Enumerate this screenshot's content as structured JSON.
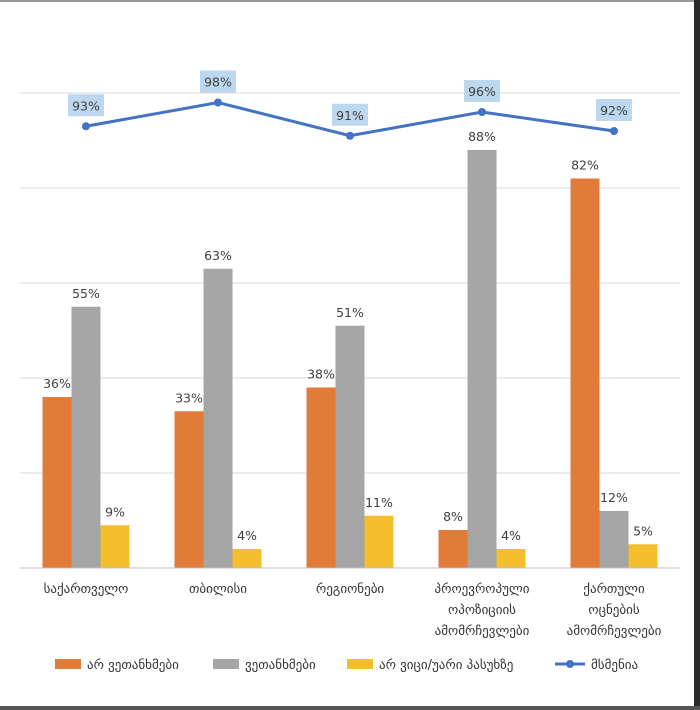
{
  "chart_data": {
    "type": "bar",
    "title": "",
    "xlabel": "",
    "ylabel": "",
    "ylim": [
      0,
      100
    ],
    "categories": [
      [
        "საქართველო"
      ],
      [
        "თბილისი"
      ],
      [
        "რეგიონები"
      ],
      [
        "პროევროპული",
        "ოპოზიციის",
        "ამომრჩევლები"
      ],
      [
        "ქართული",
        "ოცნების",
        "ამომრჩევლები"
      ]
    ],
    "series": [
      {
        "name": "არ ვეთანხმები",
        "type": "bar",
        "color": "#E07B39",
        "values": [
          36,
          33,
          38,
          8,
          82
        ]
      },
      {
        "name": "ვეთანხმები",
        "type": "bar",
        "color": "#A5A5A5",
        "values": [
          55,
          63,
          51,
          88,
          12
        ]
      },
      {
        "name": "არ ვიცი/უარი პასუხზე",
        "type": "bar",
        "color": "#F5BE2C",
        "values": [
          9,
          4,
          11,
          4,
          5
        ]
      },
      {
        "name": "მსმენია",
        "type": "line",
        "color": "#4472C4",
        "values": [
          93,
          98,
          91,
          96,
          92
        ]
      }
    ],
    "value_suffix": "%",
    "grid": true,
    "legend": "bottom"
  }
}
